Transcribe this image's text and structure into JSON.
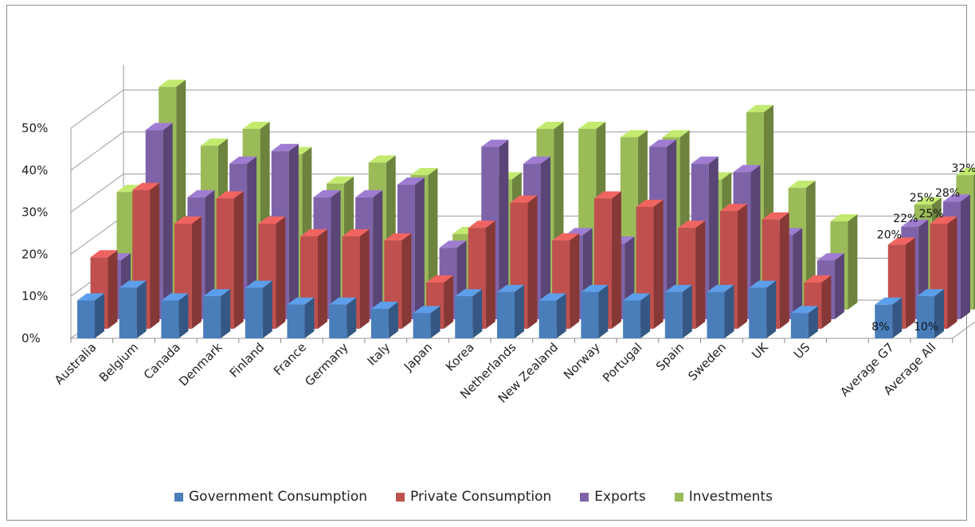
{
  "chart_data": {
    "type": "bar",
    "title": "",
    "xlabel": "",
    "ylabel": "",
    "ylim": [
      0,
      50
    ],
    "y_ticks": [
      "0%",
      "10%",
      "20%",
      "30%",
      "40%",
      "50%"
    ],
    "grid": true,
    "legend_position": "bottom",
    "categories": [
      "Australia",
      "Belgium",
      "Canada",
      "Denmark",
      "Finland",
      "France",
      "Germany",
      "Italy",
      "Japan",
      "Korea",
      "Netherlands",
      "New Zealand",
      "Norway",
      "Portugal",
      "Spain",
      "Sweden",
      "UK",
      "US",
      "",
      "Average G7",
      "Average All"
    ],
    "series": [
      {
        "name": "Government Consumption",
        "color": "#4a7ebb",
        "values": [
          9,
          12,
          9,
          10,
          12,
          8,
          8,
          7,
          6,
          10,
          11,
          9,
          11,
          9,
          11,
          11,
          12,
          6,
          null,
          8,
          10
        ]
      },
      {
        "name": "Private Consumption",
        "color": "#c0504d",
        "values": [
          17,
          33,
          25,
          31,
          25,
          22,
          22,
          21,
          11,
          24,
          30,
          21,
          31,
          29,
          24,
          28,
          26,
          11,
          null,
          20,
          25
        ]
      },
      {
        "name": "Exports",
        "color": "#7f63a8",
        "values": [
          14,
          45,
          29,
          37,
          40,
          29,
          29,
          32,
          17,
          41,
          37,
          20,
          18,
          41,
          37,
          35,
          20,
          14,
          null,
          22,
          28
        ]
      },
      {
        "name": "Investments",
        "color": "#9bbb59",
        "values": [
          28,
          53,
          39,
          43,
          37,
          30,
          35,
          32,
          18,
          31,
          43,
          43,
          41,
          41,
          31,
          47,
          29,
          21,
          null,
          25,
          32
        ]
      }
    ],
    "data_labels": {
      "Average G7": [
        "8%",
        "20%",
        "22%",
        "25%"
      ],
      "Average All": [
        "10%",
        "25%",
        "28%",
        "32%"
      ]
    }
  }
}
